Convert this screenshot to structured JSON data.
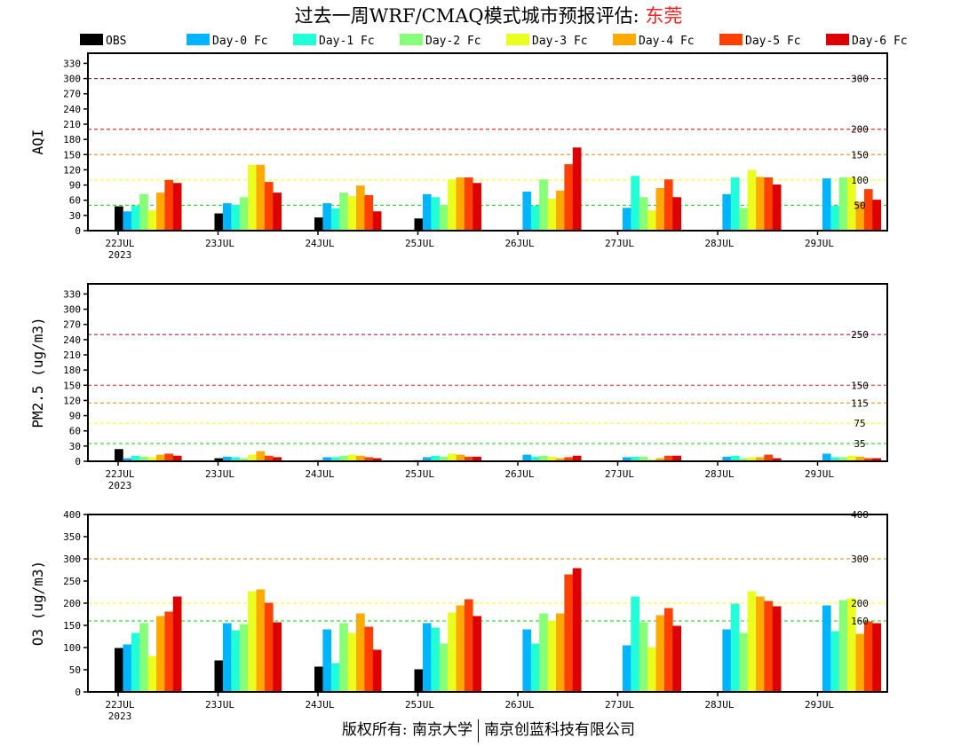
{
  "title": {
    "prefix": "过去一周WRF/CMAQ模式城市预报评估: ",
    "city": "东莞"
  },
  "footer": {
    "left": "版权所有: 南京大学",
    "right": "南京创蓝科技有限公司"
  },
  "legend": [
    {
      "name": "OBS",
      "color": "#000000"
    },
    {
      "name": "Day-0 Fc",
      "color": "#00b4ff"
    },
    {
      "name": "Day-1 Fc",
      "color": "#20ffd8"
    },
    {
      "name": "Day-2 Fc",
      "color": "#88ff78"
    },
    {
      "name": "Day-3 Fc",
      "color": "#eaff20"
    },
    {
      "name": "Day-4 Fc",
      "color": "#ffaa00"
    },
    {
      "name": "Day-5 Fc",
      "color": "#ff4000"
    },
    {
      "name": "Day-6 Fc",
      "color": "#dd0000"
    }
  ],
  "chart_data": [
    {
      "type": "bar",
      "ylabel": "AQI",
      "ylim": [
        0,
        350
      ],
      "yticks": [
        0,
        30,
        60,
        90,
        120,
        150,
        180,
        210,
        240,
        270,
        300,
        330
      ],
      "categories": [
        "22JUL",
        "23JUL",
        "24JUL",
        "25JUL",
        "26JUL",
        "27JUL",
        "28JUL",
        "29JUL"
      ],
      "first_year": "2023",
      "thresholds": [
        {
          "value": 300,
          "label": "300",
          "color": "#7a0a3a"
        },
        {
          "value": 200,
          "label": "200",
          "color": "#ff0000"
        },
        {
          "value": 150,
          "label": "150",
          "color": "#ff8000"
        },
        {
          "value": 100,
          "label": "100",
          "color": "#ffff00"
        },
        {
          "value": 50,
          "label": "50",
          "color": "#00dd00"
        }
      ],
      "series": [
        {
          "name": "OBS",
          "values": [
            48,
            34,
            26,
            24,
            null,
            null,
            null,
            null
          ]
        },
        {
          "name": "Day-0 Fc",
          "values": [
            38,
            54,
            54,
            72,
            77,
            45,
            72,
            103
          ]
        },
        {
          "name": "Day-1 Fc",
          "values": [
            49,
            51,
            44,
            66,
            49,
            108,
            105,
            49
          ]
        },
        {
          "name": "Day-2 Fc",
          "values": [
            72,
            66,
            75,
            51,
            101,
            66,
            45,
            105
          ]
        },
        {
          "name": "Day-3 Fc",
          "values": [
            40,
            130,
            68,
            101,
            63,
            40,
            120,
            105
          ]
        },
        {
          "name": "Day-4 Fc",
          "values": [
            75,
            130,
            89,
            105,
            79,
            84,
            106,
            57
          ]
        },
        {
          "name": "Day-5 Fc",
          "values": [
            100,
            96,
            70,
            105,
            131,
            101,
            105,
            82
          ]
        },
        {
          "name": "Day-6 Fc",
          "values": [
            94,
            75,
            38,
            94,
            164,
            66,
            91,
            61
          ]
        }
      ]
    },
    {
      "type": "bar",
      "ylabel": "PM2.5 (ug/m3)",
      "ylim": [
        0,
        350
      ],
      "yticks": [
        0,
        30,
        60,
        90,
        120,
        150,
        180,
        210,
        240,
        270,
        300,
        330
      ],
      "categories": [
        "22JUL",
        "23JUL",
        "24JUL",
        "25JUL",
        "26JUL",
        "27JUL",
        "28JUL",
        "29JUL"
      ],
      "first_year": "2023",
      "thresholds": [
        {
          "value": 250,
          "label": "250",
          "color": "#a0004a"
        },
        {
          "value": 150,
          "label": "150",
          "color": "#e02020"
        },
        {
          "value": 115,
          "label": "115",
          "color": "#ff8000"
        },
        {
          "value": 75,
          "label": "75",
          "color": "#ffff00"
        },
        {
          "value": 35,
          "label": "35",
          "color": "#00dd00"
        }
      ],
      "series": [
        {
          "name": "OBS",
          "values": [
            24,
            6,
            2,
            2,
            null,
            null,
            null,
            null
          ]
        },
        {
          "name": "Day-0 Fc",
          "values": [
            6,
            9,
            8,
            8,
            13,
            8,
            9,
            15
          ]
        },
        {
          "name": "Day-1 Fc",
          "values": [
            11,
            8,
            8,
            11,
            9,
            9,
            11,
            8
          ]
        },
        {
          "name": "Day-2 Fc",
          "values": [
            9,
            6,
            11,
            9,
            11,
            9,
            6,
            8
          ]
        },
        {
          "name": "Day-3 Fc",
          "values": [
            8,
            13,
            13,
            15,
            9,
            4,
            8,
            11
          ]
        },
        {
          "name": "Day-4 Fc",
          "values": [
            13,
            20,
            11,
            13,
            6,
            6,
            8,
            9
          ]
        },
        {
          "name": "Day-5 Fc",
          "values": [
            15,
            11,
            8,
            9,
            8,
            11,
            13,
            6
          ]
        },
        {
          "name": "Day-6 Fc",
          "values": [
            11,
            8,
            6,
            9,
            11,
            11,
            6,
            6
          ]
        }
      ]
    },
    {
      "type": "bar",
      "ylabel": "O3 (ug/m3)",
      "ylim": [
        0,
        400
      ],
      "yticks": [
        0,
        50,
        100,
        150,
        200,
        250,
        300,
        350,
        400
      ],
      "categories": [
        "22JUL",
        "23JUL",
        "24JUL",
        "25JUL",
        "26JUL",
        "27JUL",
        "28JUL",
        "29JUL"
      ],
      "first_year": "2023",
      "thresholds": [
        {
          "value": 400,
          "label": "400",
          "color": "#ff0000"
        },
        {
          "value": 300,
          "label": "300",
          "color": "#ff8000"
        },
        {
          "value": 200,
          "label": "200",
          "color": "#ffff00"
        },
        {
          "value": 160,
          "label": "160",
          "color": "#00dd00"
        }
      ],
      "series": [
        {
          "name": "OBS",
          "values": [
            99,
            71,
            57,
            51,
            null,
            null,
            null,
            null
          ]
        },
        {
          "name": "Day-0 Fc",
          "values": [
            107,
            155,
            141,
            155,
            141,
            105,
            141,
            195
          ]
        },
        {
          "name": "Day-1 Fc",
          "values": [
            133,
            139,
            65,
            145,
            109,
            215,
            199,
            137
          ]
        },
        {
          "name": "Day-2 Fc",
          "values": [
            155,
            153,
            155,
            109,
            177,
            157,
            133,
            207
          ]
        },
        {
          "name": "Day-3 Fc",
          "values": [
            81,
            227,
            133,
            179,
            161,
            101,
            227,
            211
          ]
        },
        {
          "name": "Day-4 Fc",
          "values": [
            171,
            231,
            177,
            195,
            177,
            173,
            215,
            131
          ]
        },
        {
          "name": "Day-5 Fc",
          "values": [
            181,
            201,
            147,
            209,
            265,
            189,
            205,
            159
          ]
        },
        {
          "name": "Day-6 Fc",
          "values": [
            215,
            157,
            95,
            171,
            279,
            149,
            193,
            155
          ]
        }
      ]
    }
  ]
}
